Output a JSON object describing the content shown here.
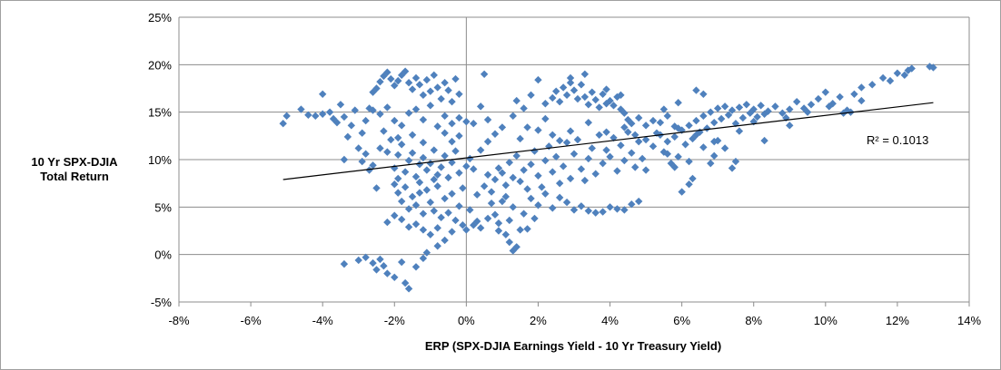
{
  "chart_data": {
    "type": "scatter",
    "title": "",
    "xlabel": "ERP (SPX-DJIA Earnings Yield - 10 Yr Treasury Yield)",
    "ylabel_line1": "10  Yr SPX-DJIA",
    "ylabel_line2": "Total Return",
    "xlim": [
      -8,
      14
    ],
    "ylim": [
      -5,
      25
    ],
    "x_ticks": [
      -8,
      -6,
      -4,
      -2,
      0,
      2,
      4,
      6,
      8,
      10,
      12,
      14
    ],
    "y_ticks": [
      -5,
      0,
      5,
      10,
      15,
      20,
      25
    ],
    "x_tick_labels": [
      "-8%",
      "-6%",
      "-4%",
      "-2%",
      "0%",
      "2%",
      "4%",
      "6%",
      "8%",
      "10%",
      "12%",
      "14%"
    ],
    "y_tick_labels": [
      "-5%",
      "0%",
      "5%",
      "10%",
      "15%",
      "20%",
      "25%"
    ],
    "grid": "horizontal",
    "marker_color": "#4f81bd",
    "marker": "diamond",
    "trendline": {
      "x": [
        -5.1,
        13.0
      ],
      "y": [
        7.9,
        16.0
      ],
      "color": "#000000"
    },
    "r_squared_label": "R² = 0.1013",
    "points": [
      [
        -5.1,
        13.8
      ],
      [
        -5.0,
        14.6
      ],
      [
        -4.6,
        15.3
      ],
      [
        -4.4,
        14.7
      ],
      [
        -4.2,
        14.6
      ],
      [
        -4.0,
        14.8
      ],
      [
        -4.0,
        16.9
      ],
      [
        -3.8,
        15.0
      ],
      [
        -3.7,
        14.3
      ],
      [
        -3.6,
        13.9
      ],
      [
        -3.5,
        15.8
      ],
      [
        -3.4,
        14.5
      ],
      [
        -3.3,
        12.4
      ],
      [
        -3.2,
        13.6
      ],
      [
        -3.1,
        15.2
      ],
      [
        -3.0,
        11.2
      ],
      [
        -2.9,
        12.8
      ],
      [
        -2.8,
        14.1
      ],
      [
        -2.7,
        15.4
      ],
      [
        -2.6,
        17.1
      ],
      [
        -2.5,
        17.5
      ],
      [
        -2.4,
        18.2
      ],
      [
        -2.3,
        18.8
      ],
      [
        -2.2,
        19.2
      ],
      [
        -2.1,
        18.5
      ],
      [
        -2.0,
        17.8
      ],
      [
        -1.9,
        18.3
      ],
      [
        -1.8,
        18.9
      ],
      [
        -1.7,
        19.3
      ],
      [
        -1.6,
        18.1
      ],
      [
        -1.5,
        17.4
      ],
      [
        -1.4,
        18.6
      ],
      [
        -1.3,
        17.9
      ],
      [
        -1.2,
        16.8
      ],
      [
        -1.1,
        18.4
      ],
      [
        -1.0,
        17.2
      ],
      [
        -0.9,
        18.9
      ],
      [
        -0.8,
        17.6
      ],
      [
        -0.7,
        16.4
      ],
      [
        -0.6,
        18.1
      ],
      [
        -0.5,
        17.3
      ],
      [
        -0.4,
        16.1
      ],
      [
        -0.3,
        18.5
      ],
      [
        -0.2,
        16.9
      ],
      [
        -2.6,
        15.2
      ],
      [
        -2.4,
        14.8
      ],
      [
        -2.2,
        15.5
      ],
      [
        -2.0,
        14.1
      ],
      [
        -1.8,
        13.6
      ],
      [
        -1.6,
        14.9
      ],
      [
        -1.4,
        15.3
      ],
      [
        -1.2,
        14.2
      ],
      [
        -1.0,
        15.7
      ],
      [
        -0.8,
        13.5
      ],
      [
        -0.6,
        14.6
      ],
      [
        -0.4,
        13.8
      ],
      [
        -0.2,
        14.4
      ],
      [
        0.0,
        14.0
      ],
      [
        0.2,
        13.8
      ],
      [
        0.4,
        15.6
      ],
      [
        0.5,
        19.0
      ],
      [
        0.6,
        14.2
      ],
      [
        -2.9,
        9.8
      ],
      [
        -2.8,
        10.6
      ],
      [
        -2.6,
        9.4
      ],
      [
        -2.4,
        11.2
      ],
      [
        -2.2,
        10.8
      ],
      [
        -2.1,
        12.1
      ],
      [
        -2.0,
        9.1
      ],
      [
        -1.9,
        10.5
      ],
      [
        -1.8,
        11.6
      ],
      [
        -1.7,
        8.7
      ],
      [
        -1.6,
        9.9
      ],
      [
        -1.5,
        10.7
      ],
      [
        -1.4,
        8.2
      ],
      [
        -1.3,
        9.5
      ],
      [
        -1.2,
        10.2
      ],
      [
        -1.1,
        8.9
      ],
      [
        -1.0,
        9.6
      ],
      [
        -0.9,
        11.0
      ],
      [
        -0.8,
        8.4
      ],
      [
        -0.7,
        9.2
      ],
      [
        -0.6,
        10.4
      ],
      [
        -0.5,
        8.1
      ],
      [
        -0.4,
        9.7
      ],
      [
        -0.3,
        10.9
      ],
      [
        -0.2,
        8.6
      ],
      [
        0.0,
        9.3
      ],
      [
        0.1,
        10.1
      ],
      [
        0.2,
        9.0
      ],
      [
        -2.0,
        7.4
      ],
      [
        -1.9,
        6.5
      ],
      [
        -1.8,
        5.6
      ],
      [
        -1.7,
        7.1
      ],
      [
        -1.6,
        4.8
      ],
      [
        -1.5,
        6.1
      ],
      [
        -1.4,
        5.2
      ],
      [
        -1.3,
        7.6
      ],
      [
        -1.2,
        4.3
      ],
      [
        -1.1,
        6.8
      ],
      [
        -1.0,
        5.5
      ],
      [
        -0.9,
        4.6
      ],
      [
        -0.8,
        7.2
      ],
      [
        -0.7,
        3.9
      ],
      [
        -0.6,
        5.9
      ],
      [
        -0.5,
        4.4
      ],
      [
        -0.4,
        6.4
      ],
      [
        -0.3,
        3.6
      ],
      [
        -0.2,
        5.1
      ],
      [
        -2.2,
        3.4
      ],
      [
        -2.0,
        4.1
      ],
      [
        -1.8,
        3.7
      ],
      [
        -1.6,
        2.9
      ],
      [
        -1.4,
        3.2
      ],
      [
        -1.2,
        2.6
      ],
      [
        -1.0,
        2.1
      ],
      [
        -0.8,
        2.8
      ],
      [
        -0.6,
        1.5
      ],
      [
        -0.4,
        2.4
      ],
      [
        -0.8,
        0.9
      ],
      [
        -3.4,
        -1.0
      ],
      [
        -3.0,
        -0.6
      ],
      [
        -2.8,
        -0.3
      ],
      [
        -2.6,
        -0.9
      ],
      [
        -2.5,
        -1.6
      ],
      [
        -2.4,
        -0.5
      ],
      [
        -2.3,
        -1.2
      ],
      [
        -2.2,
        -2.0
      ],
      [
        -2.0,
        -2.4
      ],
      [
        -1.8,
        -0.8
      ],
      [
        -1.7,
        -3.0
      ],
      [
        -1.6,
        -3.6
      ],
      [
        -1.4,
        -1.3
      ],
      [
        -1.2,
        -0.4
      ],
      [
        -1.1,
        0.2
      ],
      [
        0.0,
        2.6
      ],
      [
        0.2,
        3.1
      ],
      [
        0.3,
        3.5
      ],
      [
        0.4,
        2.8
      ],
      [
        0.6,
        3.8
      ],
      [
        0.8,
        4.2
      ],
      [
        0.9,
        3.3
      ],
      [
        1.0,
        5.6
      ],
      [
        1.1,
        2.1
      ],
      [
        1.2,
        1.3
      ],
      [
        1.3,
        0.4
      ],
      [
        1.4,
        0.8
      ],
      [
        1.5,
        2.6
      ],
      [
        0.5,
        7.2
      ],
      [
        0.6,
        8.4
      ],
      [
        0.7,
        6.6
      ],
      [
        0.8,
        7.9
      ],
      [
        0.9,
        9.1
      ],
      [
        1.0,
        8.6
      ],
      [
        1.1,
        7.3
      ],
      [
        1.2,
        9.7
      ],
      [
        1.3,
        8.1
      ],
      [
        1.4,
        10.4
      ],
      [
        1.5,
        7.7
      ],
      [
        1.6,
        8.9
      ],
      [
        1.7,
        6.9
      ],
      [
        1.8,
        9.5
      ],
      [
        1.9,
        10.9
      ],
      [
        2.0,
        8.3
      ],
      [
        2.1,
        7.1
      ],
      [
        2.2,
        9.9
      ],
      [
        2.3,
        11.4
      ],
      [
        2.4,
        8.7
      ],
      [
        2.5,
        10.3
      ],
      [
        2.6,
        7.5
      ],
      [
        2.7,
        9.3
      ],
      [
        2.8,
        11.8
      ],
      [
        2.9,
        8.0
      ],
      [
        3.0,
        10.6
      ],
      [
        3.1,
        12.1
      ],
      [
        3.2,
        9.0
      ],
      [
        3.3,
        7.8
      ],
      [
        3.4,
        10.1
      ],
      [
        3.5,
        11.2
      ],
      [
        3.6,
        8.5
      ],
      [
        3.7,
        12.6
      ],
      [
        3.8,
        9.6
      ],
      [
        3.9,
        11.0
      ],
      [
        4.0,
        10.3
      ],
      [
        4.1,
        12.3
      ],
      [
        4.2,
        8.8
      ],
      [
        4.3,
        11.5
      ],
      [
        4.4,
        9.9
      ],
      [
        4.5,
        12.9
      ],
      [
        4.6,
        10.7
      ],
      [
        4.7,
        9.2
      ],
      [
        4.8,
        11.9
      ],
      [
        4.9,
        10.1
      ],
      [
        5.0,
        8.9
      ],
      [
        1.8,
        5.9
      ],
      [
        2.0,
        5.2
      ],
      [
        2.2,
        6.4
      ],
      [
        2.4,
        4.9
      ],
      [
        2.6,
        6.0
      ],
      [
        2.8,
        5.5
      ],
      [
        3.0,
        4.7
      ],
      [
        3.2,
        5.1
      ],
      [
        3.4,
        4.6
      ],
      [
        3.6,
        4.4
      ],
      [
        3.8,
        4.5
      ],
      [
        4.0,
        5.0
      ],
      [
        4.2,
        4.8
      ],
      [
        4.4,
        4.7
      ],
      [
        4.6,
        5.3
      ],
      [
        4.8,
        5.6
      ],
      [
        2.2,
        15.9
      ],
      [
        2.4,
        16.5
      ],
      [
        2.5,
        17.2
      ],
      [
        2.6,
        16.1
      ],
      [
        2.7,
        17.6
      ],
      [
        2.8,
        16.8
      ],
      [
        2.9,
        18.1
      ],
      [
        3.0,
        17.3
      ],
      [
        3.1,
        16.4
      ],
      [
        3.2,
        17.9
      ],
      [
        3.3,
        16.6
      ],
      [
        3.4,
        15.8
      ],
      [
        3.5,
        17.1
      ],
      [
        3.6,
        16.3
      ],
      [
        3.7,
        15.5
      ],
      [
        3.8,
        16.9
      ],
      [
        3.9,
        17.4
      ],
      [
        4.0,
        16.2
      ],
      [
        4.1,
        15.7
      ],
      [
        4.2,
        16.6
      ],
      [
        4.3,
        15.3
      ],
      [
        4.4,
        14.9
      ],
      [
        4.5,
        14.2
      ],
      [
        4.6,
        13.8
      ],
      [
        4.8,
        14.4
      ],
      [
        5.0,
        13.6
      ],
      [
        5.2,
        14.1
      ],
      [
        5.4,
        13.9
      ],
      [
        5.6,
        14.6
      ],
      [
        5.8,
        13.5
      ],
      [
        2.0,
        13.1
      ],
      [
        2.2,
        14.3
      ],
      [
        2.4,
        12.6
      ],
      [
        1.6,
        15.4
      ],
      [
        1.4,
        16.2
      ],
      [
        2.0,
        18.4
      ],
      [
        1.8,
        16.8
      ],
      [
        1.5,
        12.2
      ],
      [
        1.7,
        13.4
      ],
      [
        1.3,
        14.6
      ],
      [
        5.0,
        12.1
      ],
      [
        5.2,
        11.4
      ],
      [
        5.4,
        12.6
      ],
      [
        5.5,
        10.8
      ],
      [
        5.6,
        11.9
      ],
      [
        5.7,
        9.6
      ],
      [
        5.8,
        12.4
      ],
      [
        5.9,
        10.3
      ],
      [
        6.0,
        13.1
      ],
      [
        6.1,
        11.6
      ],
      [
        6.2,
        13.6
      ],
      [
        6.3,
        12.2
      ],
      [
        6.4,
        14.1
      ],
      [
        6.5,
        12.9
      ],
      [
        6.6,
        14.6
      ],
      [
        6.7,
        13.3
      ],
      [
        6.8,
        15.0
      ],
      [
        6.9,
        13.9
      ],
      [
        7.0,
        15.4
      ],
      [
        7.1,
        14.3
      ],
      [
        7.2,
        15.6
      ],
      [
        7.3,
        14.7
      ],
      [
        7.4,
        15.2
      ],
      [
        7.5,
        13.8
      ],
      [
        7.6,
        15.5
      ],
      [
        7.7,
        14.4
      ],
      [
        7.8,
        15.8
      ],
      [
        7.9,
        14.9
      ],
      [
        8.0,
        15.3
      ],
      [
        8.1,
        14.5
      ],
      [
        8.2,
        15.7
      ],
      [
        8.3,
        14.8
      ],
      [
        8.4,
        15.1
      ],
      [
        8.6,
        15.6
      ],
      [
        8.8,
        14.9
      ],
      [
        9.0,
        15.3
      ],
      [
        9.2,
        16.1
      ],
      [
        9.4,
        15.4
      ],
      [
        9.6,
        15.8
      ],
      [
        9.8,
        16.4
      ],
      [
        10.0,
        17.1
      ],
      [
        10.2,
        15.9
      ],
      [
        10.4,
        16.6
      ],
      [
        10.6,
        15.2
      ],
      [
        10.8,
        16.9
      ],
      [
        11.0,
        17.6
      ],
      [
        11.3,
        17.9
      ],
      [
        11.6,
        18.6
      ],
      [
        11.8,
        18.3
      ],
      [
        12.0,
        19.1
      ],
      [
        12.2,
        18.9
      ],
      [
        12.3,
        19.4
      ],
      [
        12.4,
        19.6
      ],
      [
        12.9,
        19.8
      ],
      [
        13.0,
        19.7
      ],
      [
        10.5,
        14.9
      ],
      [
        10.7,
        15.0
      ],
      [
        9.0,
        13.6
      ],
      [
        8.3,
        12.0
      ],
      [
        7.5,
        9.8
      ],
      [
        7.4,
        9.1
      ],
      [
        6.8,
        9.6
      ],
      [
        6.9,
        10.4
      ],
      [
        6.3,
        8.0
      ],
      [
        6.2,
        7.4
      ],
      [
        6.0,
        6.6
      ],
      [
        7.2,
        11.2
      ],
      [
        7.0,
        12.0
      ],
      [
        6.6,
        11.3
      ],
      [
        5.8,
        9.2
      ],
      [
        5.6,
        10.6
      ],
      [
        6.2,
        9.8
      ],
      [
        6.6,
        16.9
      ],
      [
        6.4,
        17.3
      ],
      [
        5.9,
        16.0
      ],
      [
        5.5,
        15.3
      ],
      [
        0.6,
        11.9
      ],
      [
        0.8,
        12.7
      ],
      [
        1.0,
        13.4
      ],
      [
        0.4,
        11.0
      ],
      [
        -0.2,
        12.5
      ],
      [
        -0.4,
        11.9
      ],
      [
        -0.6,
        12.8
      ],
      [
        -1.2,
        11.8
      ],
      [
        -1.5,
        12.6
      ],
      [
        -2.3,
        13.0
      ],
      [
        -1.9,
        12.3
      ],
      [
        -3.4,
        10.0
      ],
      [
        -2.7,
        8.9
      ],
      [
        -2.5,
        7.0
      ],
      [
        -1.9,
        8.0
      ],
      [
        -1.3,
        6.5
      ],
      [
        -0.9,
        7.9
      ],
      [
        -0.1,
        7.0
      ],
      [
        0.3,
        6.3
      ],
      [
        0.7,
        5.4
      ],
      [
        1.1,
        6.1
      ],
      [
        1.3,
        5.0
      ],
      [
        1.6,
        4.3
      ],
      [
        1.9,
        3.8
      ],
      [
        3.3,
        19.0
      ],
      [
        2.9,
        18.6
      ],
      [
        3.9,
        15.9
      ],
      [
        4.3,
        16.8
      ],
      [
        0.1,
        4.7
      ],
      [
        -0.1,
        3.1
      ],
      [
        0.9,
        2.5
      ],
      [
        1.2,
        3.6
      ],
      [
        1.7,
        2.7
      ],
      [
        2.6,
        12.0
      ],
      [
        2.9,
        13.0
      ],
      [
        3.4,
        13.9
      ],
      [
        3.9,
        12.9
      ],
      [
        4.4,
        13.4
      ],
      [
        4.7,
        12.6
      ],
      [
        5.3,
        12.8
      ],
      [
        5.9,
        13.3
      ],
      [
        6.4,
        12.6
      ],
      [
        6.9,
        11.9
      ],
      [
        7.6,
        13.0
      ],
      [
        8.0,
        14.0
      ],
      [
        8.9,
        14.4
      ],
      [
        9.5,
        15.0
      ],
      [
        10.1,
        15.6
      ],
      [
        11.0,
        16.2
      ]
    ]
  }
}
